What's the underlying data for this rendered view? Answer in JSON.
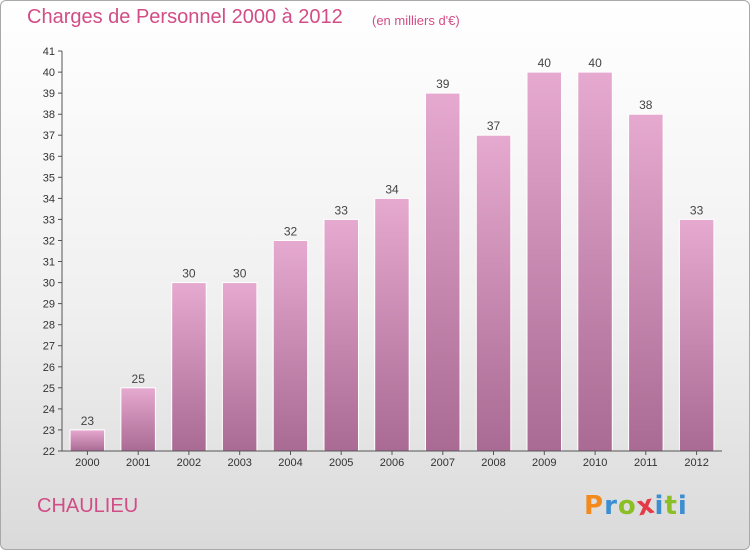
{
  "header": {
    "title": "Charges de Personnel 2000 à 2012",
    "subtitle": "(en milliers d'€)"
  },
  "footer": {
    "commune": "CHAULIEU",
    "logo_letters": [
      "P",
      "r",
      "o",
      "x",
      "i",
      "t",
      "i"
    ]
  },
  "colors": {
    "accent": "#d24d86",
    "bar_top": "#e6a9cf",
    "bar_bottom": "#a96a93",
    "logo": [
      "#f28a1e",
      "#3b8ed0",
      "#8cbf26",
      "#e63946",
      "#3b8ed0",
      "#8cbf26",
      "#3b8ed0"
    ]
  },
  "chart_data": {
    "type": "bar",
    "title": "Charges de Personnel 2000 à 2012",
    "subtitle": "(en milliers d'€)",
    "categories": [
      "2000",
      "2001",
      "2002",
      "2003",
      "2004",
      "2005",
      "2006",
      "2007",
      "2008",
      "2009",
      "2010",
      "2011",
      "2012"
    ],
    "values": [
      23,
      25,
      30,
      30,
      32,
      33,
      34,
      39,
      37,
      40,
      40,
      38,
      33
    ],
    "ylim": [
      22,
      41
    ],
    "yticks": [
      22,
      23,
      24,
      25,
      26,
      27,
      28,
      29,
      30,
      31,
      32,
      33,
      34,
      35,
      36,
      37,
      38,
      39,
      40,
      41
    ],
    "grid": false,
    "legend": "none"
  }
}
